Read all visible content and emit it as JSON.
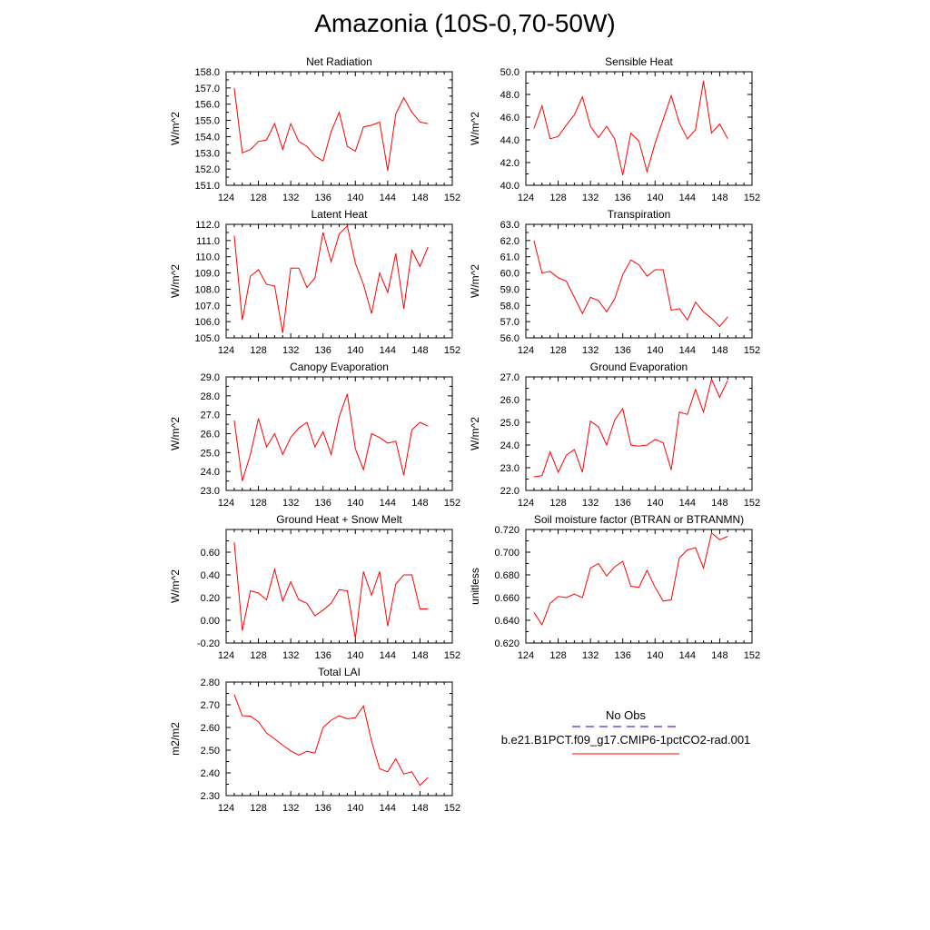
{
  "title": "Amazonia (10S-0,70-50W)",
  "colors": {
    "model_line": "#ff0000",
    "obs_line": "#0000cc",
    "axis": "#000000"
  },
  "legend": {
    "obs_label": "No Obs",
    "model_label": "b.e21.B1PCT.f09_g17.CMIP6-1pctCO2-rad.001"
  },
  "chart_data": [
    {
      "type": "line",
      "title": "Net Radiation",
      "ylabel": "W/m^2",
      "xlim": [
        124,
        152
      ],
      "xticks": [
        "124",
        "128",
        "132",
        "136",
        "140",
        "144",
        "148",
        "152"
      ],
      "ylim": [
        151.0,
        158.0
      ],
      "yticks": [
        "151.0",
        "152.0",
        "153.0",
        "154.0",
        "155.0",
        "156.0",
        "157.0",
        "158.0"
      ],
      "x": [
        125,
        126,
        127,
        128,
        129,
        130,
        131,
        132,
        133,
        134,
        135,
        136,
        137,
        138,
        139,
        140,
        141,
        142,
        143,
        144,
        145,
        146,
        147,
        148,
        149
      ],
      "values": [
        157.0,
        153.0,
        153.2,
        153.7,
        153.8,
        154.8,
        153.2,
        154.8,
        153.7,
        153.4,
        152.8,
        152.5,
        154.3,
        155.5,
        153.4,
        153.1,
        154.6,
        154.7,
        154.9,
        151.9,
        155.4,
        156.4,
        155.5,
        154.9,
        154.8
      ]
    },
    {
      "type": "line",
      "title": "Sensible Heat",
      "ylabel": "W/m^2",
      "xlim": [
        124,
        152
      ],
      "xticks": [
        "124",
        "128",
        "132",
        "136",
        "140",
        "144",
        "148",
        "152"
      ],
      "ylim": [
        40.0,
        50.0
      ],
      "yticks": [
        "40.0",
        "42.0",
        "44.0",
        "46.0",
        "48.0",
        "50.0"
      ],
      "x": [
        125,
        126,
        127,
        128,
        129,
        130,
        131,
        132,
        133,
        134,
        135,
        136,
        137,
        138,
        139,
        140,
        141,
        142,
        143,
        144,
        145,
        146,
        147,
        148,
        149
      ],
      "values": [
        45.0,
        47.0,
        44.1,
        44.3,
        45.3,
        46.2,
        47.8,
        45.2,
        44.2,
        45.2,
        44.1,
        40.9,
        44.6,
        43.9,
        41.2,
        43.7,
        45.8,
        47.9,
        45.5,
        44.1,
        44.9,
        49.2,
        44.6,
        45.4,
        44.1
      ]
    },
    {
      "type": "line",
      "title": "Latent Heat",
      "ylabel": "W/m^2",
      "xlim": [
        124,
        152
      ],
      "xticks": [
        "124",
        "128",
        "132",
        "136",
        "140",
        "144",
        "148",
        "152"
      ],
      "ylim": [
        105.0,
        112.0
      ],
      "yticks": [
        "105.0",
        "106.0",
        "107.0",
        "108.0",
        "109.0",
        "110.0",
        "111.0",
        "112.0"
      ],
      "x": [
        125,
        126,
        127,
        128,
        129,
        130,
        131,
        132,
        133,
        134,
        135,
        136,
        137,
        138,
        139,
        140,
        141,
        142,
        143,
        144,
        145,
        146,
        147,
        148,
        149
      ],
      "values": [
        111.3,
        106.1,
        108.8,
        109.2,
        108.3,
        108.2,
        105.3,
        109.3,
        109.3,
        108.1,
        108.7,
        111.5,
        109.7,
        111.4,
        111.9,
        109.6,
        108.3,
        106.5,
        109.0,
        107.8,
        110.2,
        106.8,
        110.4,
        109.4,
        110.6
      ]
    },
    {
      "type": "line",
      "title": "Transpiration",
      "ylabel": "W/m^2",
      "xlim": [
        124,
        152
      ],
      "xticks": [
        "124",
        "128",
        "132",
        "136",
        "140",
        "144",
        "148",
        "152"
      ],
      "ylim": [
        56.0,
        63.0
      ],
      "yticks": [
        "56.0",
        "57.0",
        "58.0",
        "59.0",
        "60.0",
        "61.0",
        "62.0",
        "63.0"
      ],
      "x": [
        125,
        126,
        127,
        128,
        129,
        130,
        131,
        132,
        133,
        134,
        135,
        136,
        137,
        138,
        139,
        140,
        141,
        142,
        143,
        144,
        145,
        146,
        147,
        148,
        149
      ],
      "values": [
        62.0,
        60.0,
        60.1,
        59.7,
        59.5,
        58.5,
        57.5,
        58.5,
        58.3,
        57.6,
        58.4,
        59.9,
        60.8,
        60.5,
        59.8,
        60.2,
        60.2,
        57.7,
        57.8,
        57.1,
        58.2,
        57.6,
        57.2,
        56.7,
        57.3
      ]
    },
    {
      "type": "line",
      "title": "Canopy Evaporation",
      "ylabel": "W/m^2",
      "xlim": [
        124,
        152
      ],
      "xticks": [
        "124",
        "128",
        "132",
        "136",
        "140",
        "144",
        "148",
        "152"
      ],
      "ylim": [
        23.0,
        29.0
      ],
      "yticks": [
        "23.0",
        "24.0",
        "25.0",
        "26.0",
        "27.0",
        "28.0",
        "29.0"
      ],
      "x": [
        125,
        126,
        127,
        128,
        129,
        130,
        131,
        132,
        133,
        134,
        135,
        136,
        137,
        138,
        139,
        140,
        141,
        142,
        143,
        144,
        145,
        146,
        147,
        148,
        149
      ],
      "values": [
        26.7,
        23.5,
        24.9,
        26.8,
        25.3,
        26.0,
        24.9,
        25.8,
        26.3,
        26.6,
        25.3,
        26.1,
        24.9,
        26.9,
        28.1,
        25.2,
        24.1,
        26.0,
        25.8,
        25.5,
        25.6,
        23.8,
        26.2,
        26.6,
        26.4
      ]
    },
    {
      "type": "line",
      "title": "Ground Evaporation",
      "ylabel": "W/m^2",
      "xlim": [
        124,
        152
      ],
      "xticks": [
        "124",
        "128",
        "132",
        "136",
        "140",
        "144",
        "148",
        "152"
      ],
      "ylim": [
        22.0,
        27.0
      ],
      "yticks": [
        "22.0",
        "23.0",
        "24.0",
        "25.0",
        "26.0",
        "27.0"
      ],
      "x": [
        125,
        126,
        127,
        128,
        129,
        130,
        131,
        132,
        133,
        134,
        135,
        136,
        137,
        138,
        139,
        140,
        141,
        142,
        143,
        144,
        145,
        146,
        147,
        148,
        149
      ],
      "values": [
        22.6,
        22.65,
        23.7,
        22.8,
        23.55,
        23.8,
        22.8,
        25.05,
        24.8,
        24.0,
        25.1,
        25.6,
        24.0,
        23.95,
        24.0,
        24.25,
        24.1,
        22.9,
        25.45,
        25.35,
        26.45,
        25.45,
        26.9,
        26.1,
        26.85
      ]
    },
    {
      "type": "line",
      "title": "Ground Heat + Snow Melt",
      "ylabel": "W/m^2",
      "xlim": [
        124,
        152
      ],
      "xticks": [
        "124",
        "128",
        "132",
        "136",
        "140",
        "144",
        "148",
        "152"
      ],
      "ylim": [
        -0.2,
        0.8
      ],
      "yticks": [
        "-0.20",
        "0.00",
        "0.20",
        "0.40",
        "0.60"
      ],
      "ytick_values": [
        -0.2,
        0.0,
        0.2,
        0.4,
        0.6
      ],
      "x": [
        125,
        126,
        127,
        128,
        129,
        130,
        131,
        132,
        133,
        134,
        135,
        136,
        137,
        138,
        139,
        140,
        141,
        142,
        143,
        144,
        145,
        146,
        147,
        148,
        149
      ],
      "values": [
        0.69,
        -0.09,
        0.26,
        0.24,
        0.18,
        0.45,
        0.17,
        0.34,
        0.18,
        0.15,
        0.04,
        0.09,
        0.15,
        0.27,
        0.26,
        -0.16,
        0.43,
        0.22,
        0.43,
        -0.05,
        0.32,
        0.4,
        0.4,
        0.1,
        0.1
      ]
    },
    {
      "type": "line",
      "title": "Soil moisture factor (BTRAN or BTRANMN)",
      "ylabel": "unitless",
      "xlim": [
        124,
        152
      ],
      "xticks": [
        "124",
        "128",
        "132",
        "136",
        "140",
        "144",
        "148",
        "152"
      ],
      "ylim": [
        0.62,
        0.72
      ],
      "yticks": [
        "0.620",
        "0.640",
        "0.660",
        "0.680",
        "0.700",
        "0.720"
      ],
      "x": [
        125,
        126,
        127,
        128,
        129,
        130,
        131,
        132,
        133,
        134,
        135,
        136,
        137,
        138,
        139,
        140,
        141,
        142,
        143,
        144,
        145,
        146,
        147,
        148,
        149
      ],
      "values": [
        0.647,
        0.636,
        0.655,
        0.661,
        0.66,
        0.663,
        0.66,
        0.686,
        0.69,
        0.679,
        0.687,
        0.692,
        0.67,
        0.669,
        0.684,
        0.669,
        0.657,
        0.658,
        0.695,
        0.702,
        0.704,
        0.686,
        0.717,
        0.711,
        0.714
      ]
    },
    {
      "type": "line",
      "title": "Total LAI",
      "ylabel": "m2/m2",
      "xlim": [
        124,
        152
      ],
      "xticks": [
        "124",
        "128",
        "132",
        "136",
        "140",
        "144",
        "148",
        "152"
      ],
      "ylim": [
        2.3,
        2.8
      ],
      "yticks": [
        "2.30",
        "2.40",
        "2.50",
        "2.60",
        "2.70",
        "2.80"
      ],
      "x": [
        125,
        126,
        127,
        128,
        129,
        130,
        131,
        132,
        133,
        134,
        135,
        136,
        137,
        138,
        139,
        140,
        141,
        142,
        143,
        144,
        145,
        146,
        147,
        148,
        149
      ],
      "values": [
        2.745,
        2.652,
        2.65,
        2.625,
        2.575,
        2.55,
        2.522,
        2.497,
        2.478,
        2.495,
        2.487,
        2.6,
        2.632,
        2.652,
        2.638,
        2.643,
        2.695,
        2.54,
        2.418,
        2.405,
        2.462,
        2.395,
        2.405,
        2.345,
        2.38
      ]
    }
  ]
}
